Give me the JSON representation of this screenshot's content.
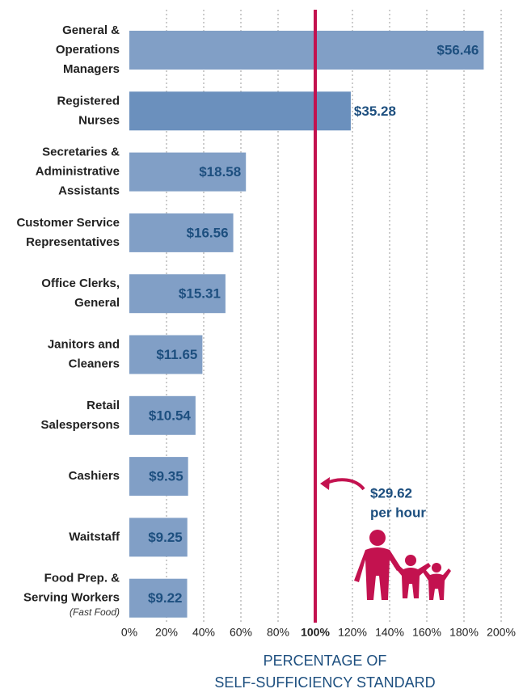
{
  "chart_data": {
    "type": "barh",
    "categories": [
      [
        "General &",
        "Operations",
        "Managers"
      ],
      [
        "Registered",
        "Nurses"
      ],
      [
        "Secretaries &",
        "Administrative",
        "Assistants"
      ],
      [
        "Customer Service",
        "Representatives"
      ],
      [
        "Office Clerks,",
        "General"
      ],
      [
        "Janitors and",
        "Cleaners"
      ],
      [
        "Retail",
        "Salespersons"
      ],
      [
        "Cashiers"
      ],
      [
        "Waitstaff"
      ],
      [
        "Food Prep. &",
        "Serving Workers"
      ]
    ],
    "category_notes": [
      null,
      null,
      null,
      null,
      null,
      null,
      null,
      null,
      null,
      "(Fast Food)"
    ],
    "values": [
      190.6,
      119.1,
      62.7,
      55.9,
      51.7,
      39.3,
      35.6,
      31.6,
      31.2,
      31.1
    ],
    "value_labels": [
      "$56.46",
      "$35.28",
      "$18.58",
      "$16.56",
      "$15.31",
      "$11.65",
      "$10.54",
      "$9.35",
      "$9.25",
      "$9.22"
    ],
    "colors": [
      "#819fc6",
      "#6b90bd",
      "#819fc6",
      "#819fc6",
      "#819fc6",
      "#819fc6",
      "#819fc6",
      "#819fc6",
      "#819fc6",
      "#819fc6"
    ],
    "value_labels_outside": [
      1
    ],
    "xlim": [
      0,
      200
    ],
    "xticks": [
      {
        "value": 0,
        "label": "0%"
      },
      {
        "value": 20,
        "label": "20%"
      },
      {
        "value": 40,
        "label": "40%"
      },
      {
        "value": 60,
        "label": "60%"
      },
      {
        "value": 80,
        "label": "80%"
      },
      {
        "value": 100,
        "label": "100%"
      },
      {
        "value": 120,
        "label": "120%"
      },
      {
        "value": 140,
        "label": "140%"
      },
      {
        "value": 160,
        "label": "160%"
      },
      {
        "value": 180,
        "label": "180%"
      },
      {
        "value": 200,
        "label": "200%"
      }
    ],
    "grid": true,
    "reference_line": {
      "value": 100,
      "color": "#c3124f"
    },
    "annotation": [
      "$29.62",
      "per hour"
    ],
    "xlabel": [
      "PERCENTAGE OF",
      "SELF-SUFFICIENCY STANDARD"
    ]
  }
}
